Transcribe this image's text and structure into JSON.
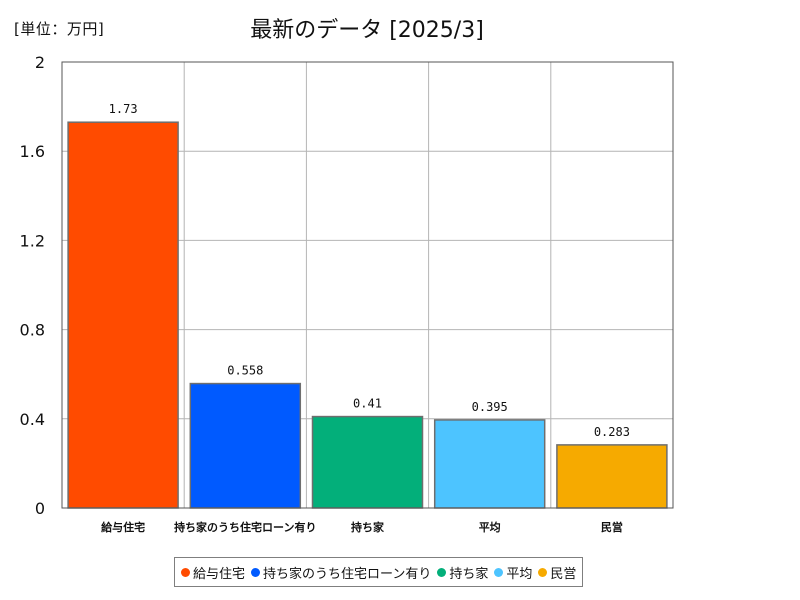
{
  "unit_label": "[単位：万円]",
  "chart_data": {
    "type": "bar",
    "title": "最新のデータ [2025/3]",
    "xlabel": "",
    "ylabel": "",
    "ylim": [
      0,
      2
    ],
    "yticks": [
      0,
      0.4,
      0.8,
      1.2,
      1.6,
      2
    ],
    "ytick_labels": [
      "0",
      "0.4",
      "0.8",
      "1.2",
      "1.6",
      "2"
    ],
    "grid": true,
    "legend_position": "bottom",
    "categories": [
      "給与住宅",
      "持ち家のうち住宅ローン有り",
      "持ち家",
      "平均",
      "民営"
    ],
    "values": [
      1.73,
      0.558,
      0.41,
      0.395,
      0.283
    ],
    "value_labels": [
      "1.73",
      "0.558",
      "0.41",
      "0.395",
      "0.283"
    ],
    "colors": [
      "#ff4b00",
      "#005aff",
      "#03af7a",
      "#4dc4ff",
      "#f6aa00"
    ]
  }
}
